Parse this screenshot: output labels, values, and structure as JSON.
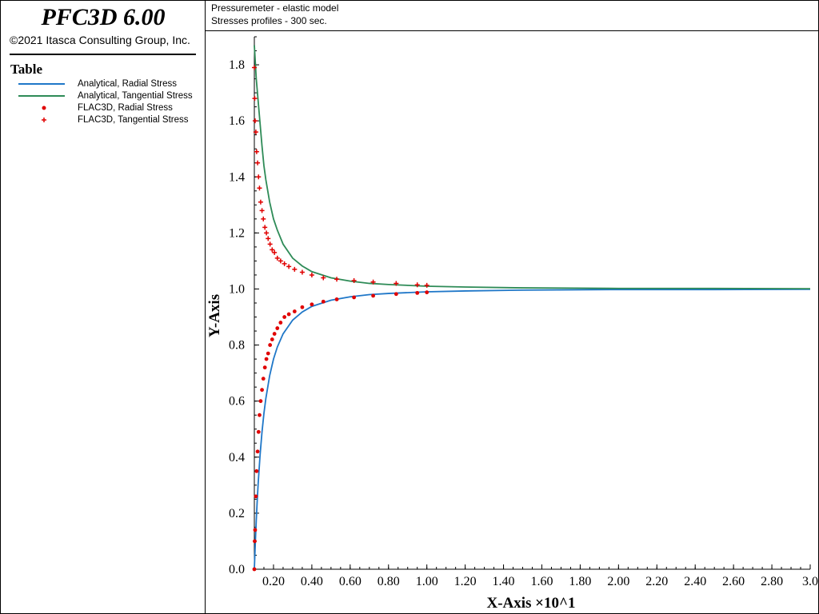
{
  "app": {
    "title": "PFC3D 6.00",
    "copyright": "©2021 Itasca Consulting Group, Inc."
  },
  "legend": {
    "title": "Table",
    "items": [
      {
        "label": "Analytical, Radial Stress",
        "kind": "line",
        "color": "#1f77c8"
      },
      {
        "label": "Analytical, Tangential Stress",
        "kind": "line",
        "color": "#2e8b57"
      },
      {
        "label": "FLAC3D, Radial Stress",
        "kind": "point",
        "color": "#e00000"
      },
      {
        "label": "FLAC3D, Tangential Stress",
        "kind": "plus",
        "color": "#e00000"
      }
    ]
  },
  "chart_title": {
    "line1": "Pressuremeter - elastic model",
    "line2": "Stresses profiles - 300 sec."
  },
  "chart_data": {
    "type": "line",
    "xlabel": "X-Axis ×10^1",
    "ylabel": "Y-Axis",
    "xlim": [
      0.1,
      3.0
    ],
    "ylim": [
      0.0,
      1.9
    ],
    "xticks": [
      "0.20",
      "0.40",
      "0.60",
      "0.80",
      "1.00",
      "1.20",
      "1.40",
      "1.60",
      "1.80",
      "2.00",
      "2.20",
      "2.40",
      "2.60",
      "2.80",
      "3.0"
    ],
    "yticks": [
      "0.0",
      "0.2",
      "0.4",
      "0.6",
      "0.8",
      "1.0",
      "1.2",
      "1.4",
      "1.6",
      "1.8"
    ],
    "grid": false,
    "series": [
      {
        "name": "Analytical, Radial Stress",
        "kind": "line",
        "color": "#1f77c8",
        "x": [
          0.1,
          0.105,
          0.11,
          0.115,
          0.12,
          0.13,
          0.14,
          0.15,
          0.16,
          0.18,
          0.2,
          0.22,
          0.25,
          0.3,
          0.35,
          0.4,
          0.5,
          0.6,
          0.7,
          0.8,
          1.0,
          1.2,
          1.5,
          2.0,
          2.5,
          3.0
        ],
        "y": [
          0.0,
          0.093,
          0.174,
          0.244,
          0.306,
          0.408,
          0.49,
          0.556,
          0.609,
          0.691,
          0.75,
          0.793,
          0.84,
          0.889,
          0.918,
          0.938,
          0.96,
          0.972,
          0.98,
          0.984,
          0.99,
          0.993,
          0.996,
          0.998,
          0.998,
          0.999
        ]
      },
      {
        "name": "Analytical, Tangential Stress",
        "kind": "line",
        "color": "#2e8b57",
        "x": [
          0.1,
          0.105,
          0.11,
          0.115,
          0.12,
          0.13,
          0.14,
          0.15,
          0.16,
          0.18,
          0.2,
          0.22,
          0.25,
          0.3,
          0.35,
          0.4,
          0.5,
          0.6,
          0.7,
          0.8,
          1.0,
          1.2,
          1.5,
          2.0,
          2.5,
          3.0
        ],
        "y": [
          1.87,
          1.81,
          1.75,
          1.71,
          1.67,
          1.59,
          1.51,
          1.44,
          1.39,
          1.31,
          1.25,
          1.21,
          1.16,
          1.11,
          1.082,
          1.062,
          1.04,
          1.028,
          1.02,
          1.016,
          1.01,
          1.007,
          1.004,
          1.002,
          1.002,
          1.001
        ]
      },
      {
        "name": "FLAC3D, Radial Stress",
        "kind": "point",
        "color": "#e00000",
        "x": [
          0.1,
          0.102,
          0.104,
          0.108,
          0.112,
          0.117,
          0.122,
          0.127,
          0.133,
          0.14,
          0.147,
          0.155,
          0.163,
          0.172,
          0.182,
          0.193,
          0.205,
          0.22,
          0.237,
          0.257,
          0.28,
          0.31,
          0.35,
          0.4,
          0.46,
          0.53,
          0.62,
          0.72,
          0.84,
          0.95,
          1.0
        ],
        "y": [
          0.0,
          0.1,
          0.14,
          0.26,
          0.35,
          0.42,
          0.49,
          0.55,
          0.6,
          0.64,
          0.68,
          0.72,
          0.75,
          0.77,
          0.8,
          0.82,
          0.84,
          0.86,
          0.88,
          0.9,
          0.91,
          0.92,
          0.935,
          0.945,
          0.955,
          0.963,
          0.97,
          0.976,
          0.982,
          0.986,
          0.988
        ]
      },
      {
        "name": "FLAC3D, Tangential Stress",
        "kind": "plus",
        "color": "#e00000",
        "x": [
          0.1,
          0.102,
          0.104,
          0.108,
          0.112,
          0.117,
          0.122,
          0.127,
          0.133,
          0.14,
          0.147,
          0.155,
          0.163,
          0.172,
          0.182,
          0.193,
          0.205,
          0.22,
          0.237,
          0.257,
          0.28,
          0.31,
          0.35,
          0.4,
          0.46,
          0.53,
          0.62,
          0.72,
          0.84,
          0.95,
          1.0
        ],
        "y": [
          1.79,
          1.68,
          1.6,
          1.56,
          1.49,
          1.45,
          1.4,
          1.36,
          1.31,
          1.28,
          1.25,
          1.22,
          1.2,
          1.18,
          1.16,
          1.14,
          1.13,
          1.11,
          1.1,
          1.09,
          1.08,
          1.07,
          1.06,
          1.05,
          1.04,
          1.035,
          1.03,
          1.025,
          1.02,
          1.015,
          1.013
        ]
      }
    ]
  }
}
